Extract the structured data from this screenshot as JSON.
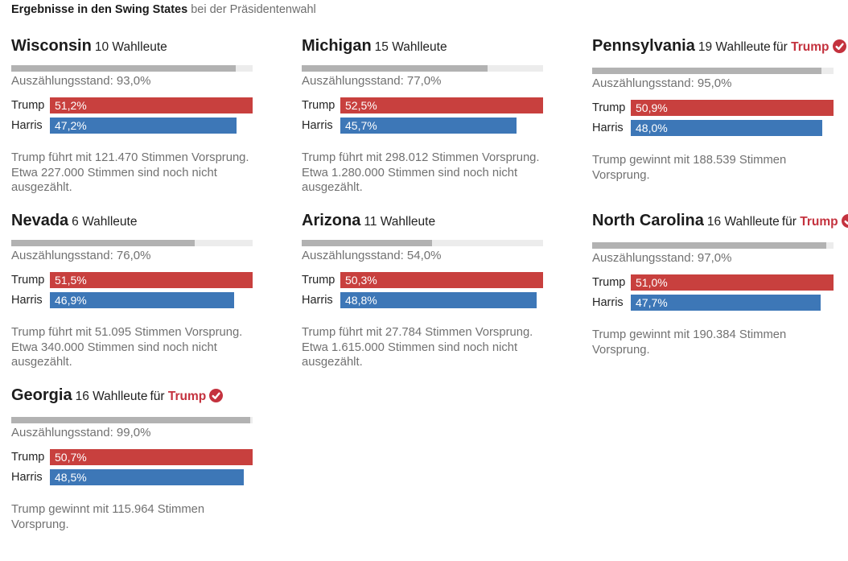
{
  "header": {
    "title_bold": "Ergebnisse in den Swing States",
    "title_rest": " bei der Präsidentenwahl"
  },
  "colors": {
    "trump_red": "#c8403e",
    "harris_blue": "#3d77b7",
    "winner_red": "#c4323e",
    "progress_track": "#ececec",
    "progress_fill": "#b2b2b2",
    "text_gray": "#717171"
  },
  "states": [
    {
      "name": "Wisconsin",
      "electors_label": "10 Wahlleute",
      "winner_prefix": "für",
      "winner": null,
      "counted_label": "Auszählungsstand: 93,0%",
      "counted_pct": 93.0,
      "candidates": [
        {
          "name": "Trump",
          "value": 51.2,
          "display": "51,2%",
          "color_key": "trump_red"
        },
        {
          "name": "Harris",
          "value": 47.2,
          "display": "47,2%",
          "color_key": "harris_blue"
        }
      ],
      "notes": [
        "Trump führt mit 121.470 Stimmen Vorsprung.",
        "Etwa 227.000 Stimmen sind noch nicht ausgezählt."
      ]
    },
    {
      "name": "Michigan",
      "electors_label": "15 Wahlleute",
      "winner_prefix": "für",
      "winner": null,
      "counted_label": "Auszählungsstand: 77,0%",
      "counted_pct": 77.0,
      "candidates": [
        {
          "name": "Trump",
          "value": 52.5,
          "display": "52,5%",
          "color_key": "trump_red"
        },
        {
          "name": "Harris",
          "value": 45.7,
          "display": "45,7%",
          "color_key": "harris_blue"
        }
      ],
      "notes": [
        "Trump führt mit 298.012 Stimmen Vorsprung.",
        "Etwa 1.280.000 Stimmen sind noch nicht ausgezählt."
      ]
    },
    {
      "name": "Pennsylvania",
      "electors_label": "19 Wahlleute",
      "winner_prefix": "für",
      "winner": "Trump",
      "counted_label": "Auszählungsstand: 95,0%",
      "counted_pct": 95.0,
      "candidates": [
        {
          "name": "Trump",
          "value": 50.9,
          "display": "50,9%",
          "color_key": "trump_red"
        },
        {
          "name": "Harris",
          "value": 48.0,
          "display": "48,0%",
          "color_key": "harris_blue"
        }
      ],
      "notes": [
        "Trump gewinnt mit 188.539 Stimmen Vorsprung."
      ]
    },
    {
      "name": "Nevada",
      "electors_label": "6 Wahlleute",
      "winner_prefix": "für",
      "winner": null,
      "counted_label": "Auszählungsstand: 76,0%",
      "counted_pct": 76.0,
      "candidates": [
        {
          "name": "Trump",
          "value": 51.5,
          "display": "51,5%",
          "color_key": "trump_red"
        },
        {
          "name": "Harris",
          "value": 46.9,
          "display": "46,9%",
          "color_key": "harris_blue"
        }
      ],
      "notes": [
        "Trump führt mit 51.095 Stimmen Vorsprung.",
        "Etwa 340.000 Stimmen sind noch nicht ausgezählt."
      ]
    },
    {
      "name": "Arizona",
      "electors_label": "11 Wahlleute",
      "winner_prefix": "für",
      "winner": null,
      "counted_label": "Auszählungsstand: 54,0%",
      "counted_pct": 54.0,
      "candidates": [
        {
          "name": "Trump",
          "value": 50.3,
          "display": "50,3%",
          "color_key": "trump_red"
        },
        {
          "name": "Harris",
          "value": 48.8,
          "display": "48,8%",
          "color_key": "harris_blue"
        }
      ],
      "notes": [
        "Trump führt mit 27.784 Stimmen Vorsprung.",
        "Etwa 1.615.000 Stimmen sind noch nicht ausgezählt."
      ]
    },
    {
      "name": "North Carolina",
      "electors_label": "16 Wahlleute",
      "winner_prefix": "für",
      "winner": "Trump",
      "counted_label": "Auszählungsstand: 97,0%",
      "counted_pct": 97.0,
      "candidates": [
        {
          "name": "Trump",
          "value": 51.0,
          "display": "51,0%",
          "color_key": "trump_red"
        },
        {
          "name": "Harris",
          "value": 47.7,
          "display": "47,7%",
          "color_key": "harris_blue"
        }
      ],
      "notes": [
        "Trump gewinnt mit 190.384 Stimmen Vorsprung."
      ]
    },
    {
      "name": "Georgia",
      "electors_label": "16 Wahlleute",
      "winner_prefix": "für",
      "winner": "Trump",
      "counted_label": "Auszählungsstand: 99,0%",
      "counted_pct": 99.0,
      "candidates": [
        {
          "name": "Trump",
          "value": 50.7,
          "display": "50,7%",
          "color_key": "trump_red"
        },
        {
          "name": "Harris",
          "value": 48.5,
          "display": "48,5%",
          "color_key": "harris_blue"
        }
      ],
      "notes": [
        "Trump gewinnt mit 115.964 Stimmen Vorsprung."
      ]
    }
  ],
  "chart_data": {
    "type": "bar",
    "title": "Ergebnisse in den Swing States bei der Präsidentenwahl",
    "unit": "%",
    "categories": [
      "Trump",
      "Harris"
    ],
    "legend_colors": {
      "Trump": "#c8403e",
      "Harris": "#3d77b7"
    },
    "layout": "7 state mini-charts in 3-column grid; leading bar spans full width, other bar scaled proportionally; gray progress bar shows counted share of full width",
    "states": [
      {
        "name": "Wisconsin",
        "electors": 10,
        "declared_for": null,
        "counted_pct": 93.0,
        "values": {
          "Trump": 51.2,
          "Harris": 47.2
        },
        "lead_votes": "121.470",
        "uncounted_votes": "227.000"
      },
      {
        "name": "Michigan",
        "electors": 15,
        "declared_for": null,
        "counted_pct": 77.0,
        "values": {
          "Trump": 52.5,
          "Harris": 45.7
        },
        "lead_votes": "298.012",
        "uncounted_votes": "1.280.000"
      },
      {
        "name": "Pennsylvania",
        "electors": 19,
        "declared_for": "Trump",
        "counted_pct": 95.0,
        "values": {
          "Trump": 50.9,
          "Harris": 48.0
        },
        "lead_votes": "188.539"
      },
      {
        "name": "Nevada",
        "electors": 6,
        "declared_for": null,
        "counted_pct": 76.0,
        "values": {
          "Trump": 51.5,
          "Harris": 46.9
        },
        "lead_votes": "51.095",
        "uncounted_votes": "340.000"
      },
      {
        "name": "Arizona",
        "electors": 11,
        "declared_for": null,
        "counted_pct": 54.0,
        "values": {
          "Trump": 50.3,
          "Harris": 48.8
        },
        "lead_votes": "27.784",
        "uncounted_votes": "1.615.000"
      },
      {
        "name": "North Carolina",
        "electors": 16,
        "declared_for": "Trump",
        "counted_pct": 97.0,
        "values": {
          "Trump": 51.0,
          "Harris": 47.7
        },
        "lead_votes": "190.384"
      },
      {
        "name": "Georgia",
        "electors": 16,
        "declared_for": "Trump",
        "counted_pct": 99.0,
        "values": {
          "Trump": 50.7,
          "Harris": 48.5
        },
        "lead_votes": "115.964"
      }
    ]
  }
}
